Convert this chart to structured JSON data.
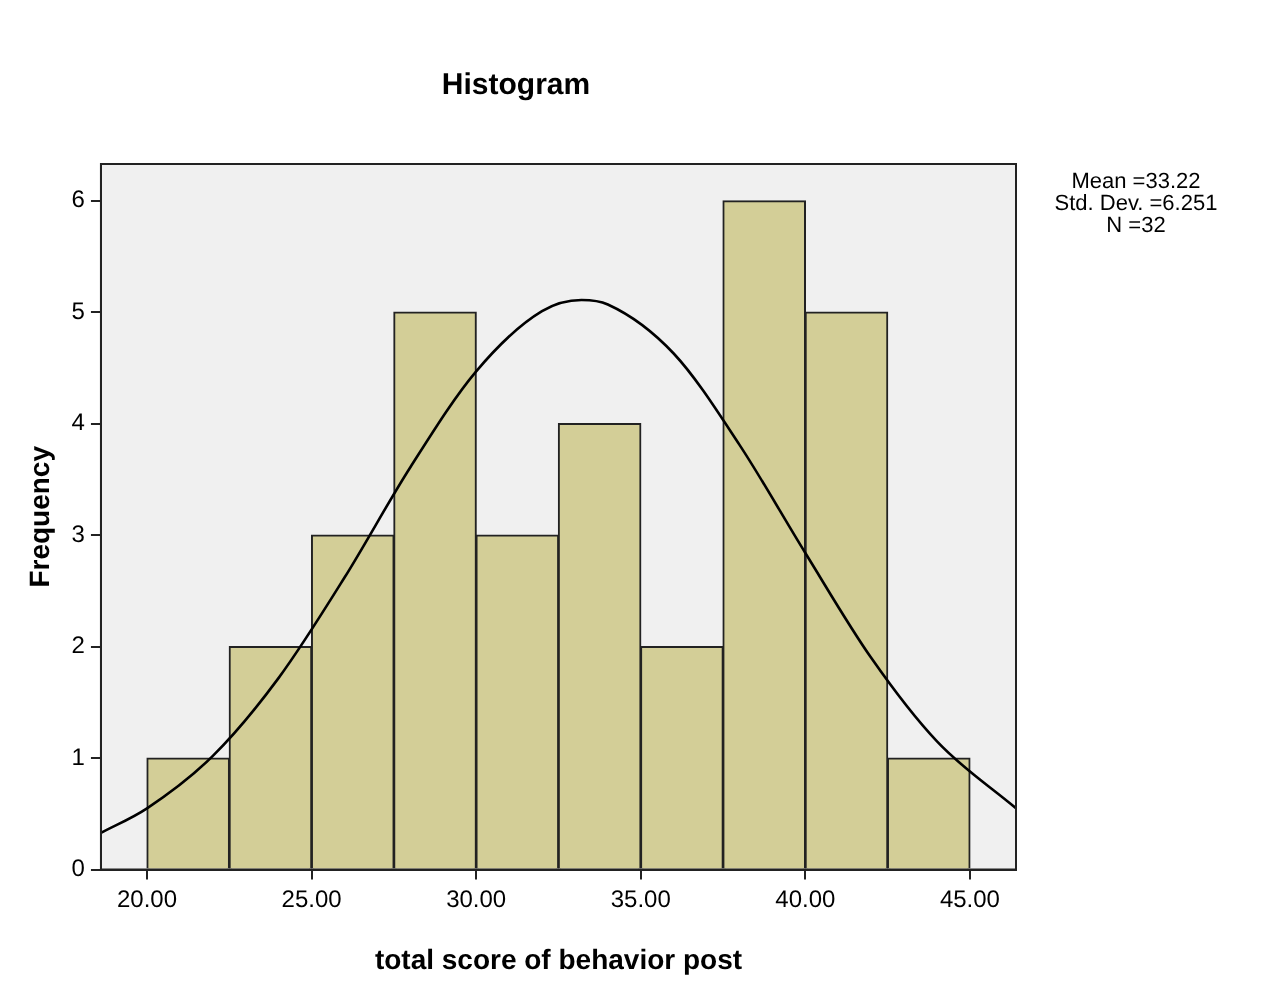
{
  "chart_data": {
    "type": "histogram",
    "title": "Histogram",
    "xlabel": "total score of behavior post",
    "ylabel": "Frequency",
    "bins": [
      20,
      22.5,
      25,
      27.5,
      30,
      32.5,
      35,
      37.5,
      40,
      42.5,
      45
    ],
    "values": [
      1,
      2,
      3,
      5,
      3,
      4,
      2,
      6,
      5,
      1
    ],
    "color": "#d3ce97",
    "series": [
      {
        "type": "line",
        "color": "#000000",
        "x": [
          18.6,
          20,
          22,
          24,
          26,
          28,
          30,
          32,
          33.2,
          34,
          36,
          38,
          40,
          42,
          44,
          46.4
        ],
        "values": [
          0.33,
          0.55,
          1.02,
          1.72,
          2.62,
          3.61,
          4.47,
          5.01,
          5.11,
          5.07,
          4.63,
          3.81,
          2.84,
          1.9,
          1.15,
          0.55
        ]
      }
    ],
    "marker": "none",
    "xlim": [
      18.6,
      46.4
    ],
    "xticks": [
      {
        "value": 20,
        "label": "20.00"
      },
      {
        "value": 25,
        "label": "25.00"
      },
      {
        "value": 30,
        "label": "30.00"
      },
      {
        "value": 35,
        "label": "35.00"
      },
      {
        "value": 40,
        "label": "40.00"
      },
      {
        "value": 45,
        "label": "45.00"
      }
    ],
    "ylim": [
      0,
      6.33
    ],
    "yticks": [
      0,
      1,
      2,
      3,
      4,
      5,
      6
    ],
    "grid": false,
    "annotations": [
      "Mean =33.22",
      "Std. Dev. =6.251",
      "N =32"
    ]
  }
}
